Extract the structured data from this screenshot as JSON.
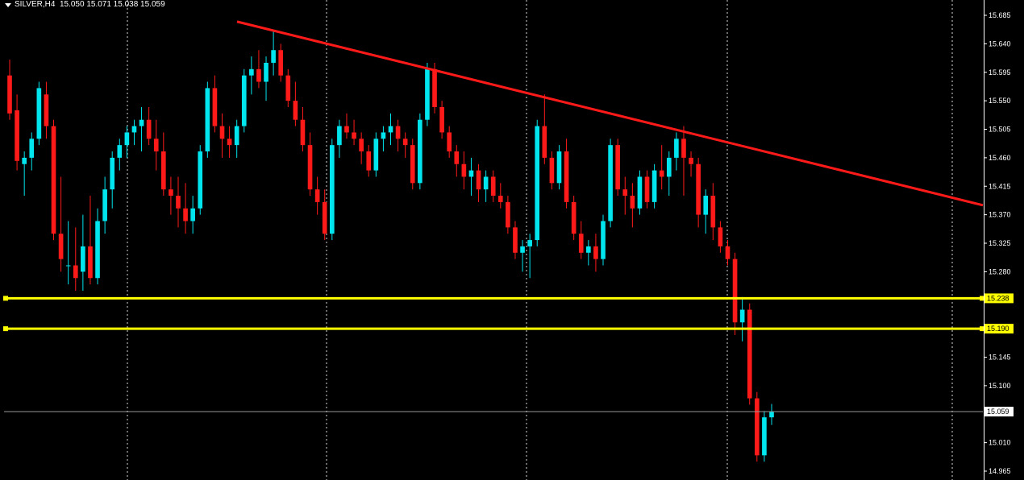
{
  "chart_header": {
    "symbol_timeframe": "SILVER,H4",
    "ohlc": "15.050 15.071 15.038 15.059"
  },
  "colors": {
    "background": "#000000",
    "bull_candle": "#00e5ee",
    "bear_candle": "#ff1a1a",
    "trendline": "#ff1a1a",
    "support_line": "#ffff00",
    "grid": "#ffffff",
    "axis_text": "#ffffff"
  },
  "price_axis": {
    "ticks": [
      "15.685",
      "15.640",
      "15.595",
      "15.550",
      "15.505",
      "15.460",
      "15.415",
      "15.370",
      "15.325",
      "15.280",
      "15.235",
      "15.190",
      "15.145",
      "15.100",
      "15.055",
      "15.010",
      "14.965"
    ],
    "visible_ticks": [
      "15.685",
      "15.640",
      "15.595",
      "15.550",
      "15.505",
      "15.460",
      "15.415",
      "15.370",
      "15.325",
      "15.280",
      "15.145",
      "15.100",
      "15.010",
      "14.965"
    ],
    "range": [
      14.955,
      15.705
    ]
  },
  "price_tags": {
    "support_1": "15.238",
    "support_2": "15.190",
    "current": "15.059"
  },
  "chart_data": {
    "type": "candlestick",
    "title": "",
    "series_name": "SILVER,H4",
    "trendline": {
      "from": {
        "bar": 48,
        "price": 15.675
      },
      "to": {
        "bar": 199,
        "price": 15.385
      }
    },
    "horizontal_levels": [
      15.238,
      15.19
    ],
    "current_price": 15.059,
    "bars": [
      [
        15.59,
        15.615,
        15.52,
        15.53
      ],
      [
        15.535,
        15.56,
        15.44,
        15.455
      ],
      [
        15.45,
        15.47,
        15.4,
        15.46
      ],
      [
        15.46,
        15.5,
        15.44,
        15.49
      ],
      [
        15.49,
        15.58,
        15.48,
        15.57
      ],
      [
        15.56,
        15.58,
        15.49,
        15.51
      ],
      [
        15.51,
        15.52,
        15.33,
        15.34
      ],
      [
        15.34,
        15.43,
        15.28,
        15.3
      ],
      [
        15.29,
        15.36,
        15.26,
        15.29
      ],
      [
        15.29,
        15.35,
        15.25,
        15.27
      ],
      [
        15.28,
        15.37,
        15.25,
        15.32
      ],
      [
        15.32,
        15.4,
        15.26,
        15.27
      ],
      [
        15.27,
        15.38,
        15.26,
        15.36
      ],
      [
        15.36,
        15.43,
        15.34,
        15.41
      ],
      [
        15.41,
        15.47,
        15.38,
        15.46
      ],
      [
        15.46,
        15.49,
        15.44,
        15.48
      ],
      [
        15.48,
        15.51,
        15.46,
        15.5
      ],
      [
        15.5,
        15.52,
        15.48,
        15.51
      ],
      [
        15.51,
        15.54,
        15.47,
        15.52
      ],
      [
        15.52,
        15.54,
        15.48,
        15.49
      ],
      [
        15.49,
        15.52,
        15.44,
        15.47
      ],
      [
        15.47,
        15.5,
        15.4,
        15.41
      ],
      [
        15.41,
        15.43,
        15.37,
        15.4
      ],
      [
        15.4,
        15.43,
        15.35,
        15.38
      ],
      [
        15.38,
        15.42,
        15.34,
        15.36
      ],
      [
        15.36,
        15.4,
        15.34,
        15.38
      ],
      [
        15.38,
        15.48,
        15.37,
        15.47
      ],
      [
        15.47,
        15.58,
        15.46,
        15.57
      ],
      [
        15.57,
        15.59,
        15.5,
        15.51
      ],
      [
        15.51,
        15.53,
        15.46,
        15.49
      ],
      [
        15.49,
        15.51,
        15.46,
        15.48
      ],
      [
        15.48,
        15.52,
        15.46,
        15.51
      ],
      [
        15.51,
        15.6,
        15.5,
        15.59
      ],
      [
        15.59,
        15.62,
        15.56,
        15.6
      ],
      [
        15.6,
        15.63,
        15.57,
        15.58
      ],
      [
        15.58,
        15.62,
        15.55,
        15.61
      ],
      [
        15.61,
        15.66,
        15.59,
        15.63
      ],
      [
        15.63,
        15.64,
        15.58,
        15.59
      ],
      [
        15.59,
        15.6,
        15.54,
        15.55
      ],
      [
        15.55,
        15.58,
        15.51,
        15.52
      ],
      [
        15.52,
        15.54,
        15.47,
        15.48
      ],
      [
        15.48,
        15.5,
        15.4,
        15.41
      ],
      [
        15.41,
        15.43,
        15.37,
        15.39
      ],
      [
        15.39,
        15.41,
        15.33,
        15.34
      ],
      [
        15.34,
        15.49,
        15.33,
        15.48
      ],
      [
        15.48,
        15.52,
        15.46,
        15.51
      ],
      [
        15.51,
        15.53,
        15.49,
        15.5
      ],
      [
        15.5,
        15.52,
        15.48,
        15.49
      ],
      [
        15.49,
        15.5,
        15.45,
        15.47
      ],
      [
        15.47,
        15.48,
        15.43,
        15.44
      ],
      [
        15.44,
        15.5,
        15.43,
        15.49
      ],
      [
        15.49,
        15.51,
        15.47,
        15.5
      ],
      [
        15.5,
        15.53,
        15.48,
        15.51
      ],
      [
        15.51,
        15.52,
        15.47,
        15.49
      ],
      [
        15.49,
        15.5,
        15.46,
        15.48
      ],
      [
        15.48,
        15.49,
        15.41,
        15.42
      ],
      [
        15.42,
        15.53,
        15.41,
        15.52
      ],
      [
        15.52,
        15.61,
        15.51,
        15.6
      ],
      [
        15.6,
        15.61,
        15.53,
        15.54
      ],
      [
        15.54,
        15.55,
        15.49,
        15.5
      ],
      [
        15.5,
        15.51,
        15.46,
        15.47
      ],
      [
        15.47,
        15.48,
        15.43,
        15.45
      ],
      [
        15.45,
        15.47,
        15.41,
        15.43
      ],
      [
        15.43,
        15.46,
        15.4,
        15.44
      ],
      [
        15.44,
        15.45,
        15.39,
        15.41
      ],
      [
        15.41,
        15.44,
        15.39,
        15.43
      ],
      [
        15.43,
        15.44,
        15.39,
        15.4
      ],
      [
        15.4,
        15.42,
        15.38,
        15.39
      ],
      [
        15.39,
        15.4,
        15.34,
        15.35
      ],
      [
        15.35,
        15.36,
        15.3,
        15.31
      ],
      [
        15.31,
        15.33,
        15.28,
        15.32
      ],
      [
        15.32,
        15.34,
        15.27,
        15.33
      ],
      [
        15.33,
        15.52,
        15.32,
        15.51
      ],
      [
        15.51,
        15.56,
        15.45,
        15.46
      ],
      [
        15.46,
        15.47,
        15.41,
        15.42
      ],
      [
        15.42,
        15.48,
        15.41,
        15.47
      ],
      [
        15.47,
        15.49,
        15.38,
        15.39
      ],
      [
        15.39,
        15.4,
        15.33,
        15.34
      ],
      [
        15.34,
        15.36,
        15.3,
        15.31
      ],
      [
        15.31,
        15.33,
        15.29,
        15.32
      ],
      [
        15.32,
        15.34,
        15.28,
        15.3
      ],
      [
        15.3,
        15.37,
        15.29,
        15.36
      ],
      [
        15.36,
        15.49,
        15.35,
        15.48
      ],
      [
        15.48,
        15.49,
        15.4,
        15.41
      ],
      [
        15.41,
        15.43,
        15.37,
        15.4
      ],
      [
        15.4,
        15.42,
        15.35,
        15.38
      ],
      [
        15.38,
        15.44,
        15.37,
        15.43
      ],
      [
        15.43,
        15.44,
        15.38,
        15.39
      ],
      [
        15.39,
        15.45,
        15.38,
        15.44
      ],
      [
        15.44,
        15.48,
        15.41,
        15.43
      ],
      [
        15.43,
        15.47,
        15.4,
        15.46
      ],
      [
        15.46,
        15.5,
        15.44,
        15.49
      ],
      [
        15.49,
        15.51,
        15.4,
        15.46
      ],
      [
        15.46,
        15.47,
        15.43,
        15.45
      ],
      [
        15.45,
        15.46,
        15.35,
        15.37
      ],
      [
        15.37,
        15.41,
        15.34,
        15.4
      ],
      [
        15.4,
        15.42,
        15.33,
        15.35
      ],
      [
        15.35,
        15.36,
        15.31,
        15.32
      ],
      [
        15.32,
        15.33,
        15.29,
        15.3
      ],
      [
        15.3,
        15.31,
        15.18,
        15.2
      ],
      [
        15.2,
        15.24,
        15.17,
        15.22
      ],
      [
        15.22,
        15.23,
        15.07,
        15.08
      ],
      [
        15.08,
        15.09,
        14.98,
        14.99
      ],
      [
        14.99,
        15.06,
        14.98,
        15.05
      ],
      [
        15.05,
        15.071,
        15.038,
        15.059
      ]
    ]
  }
}
